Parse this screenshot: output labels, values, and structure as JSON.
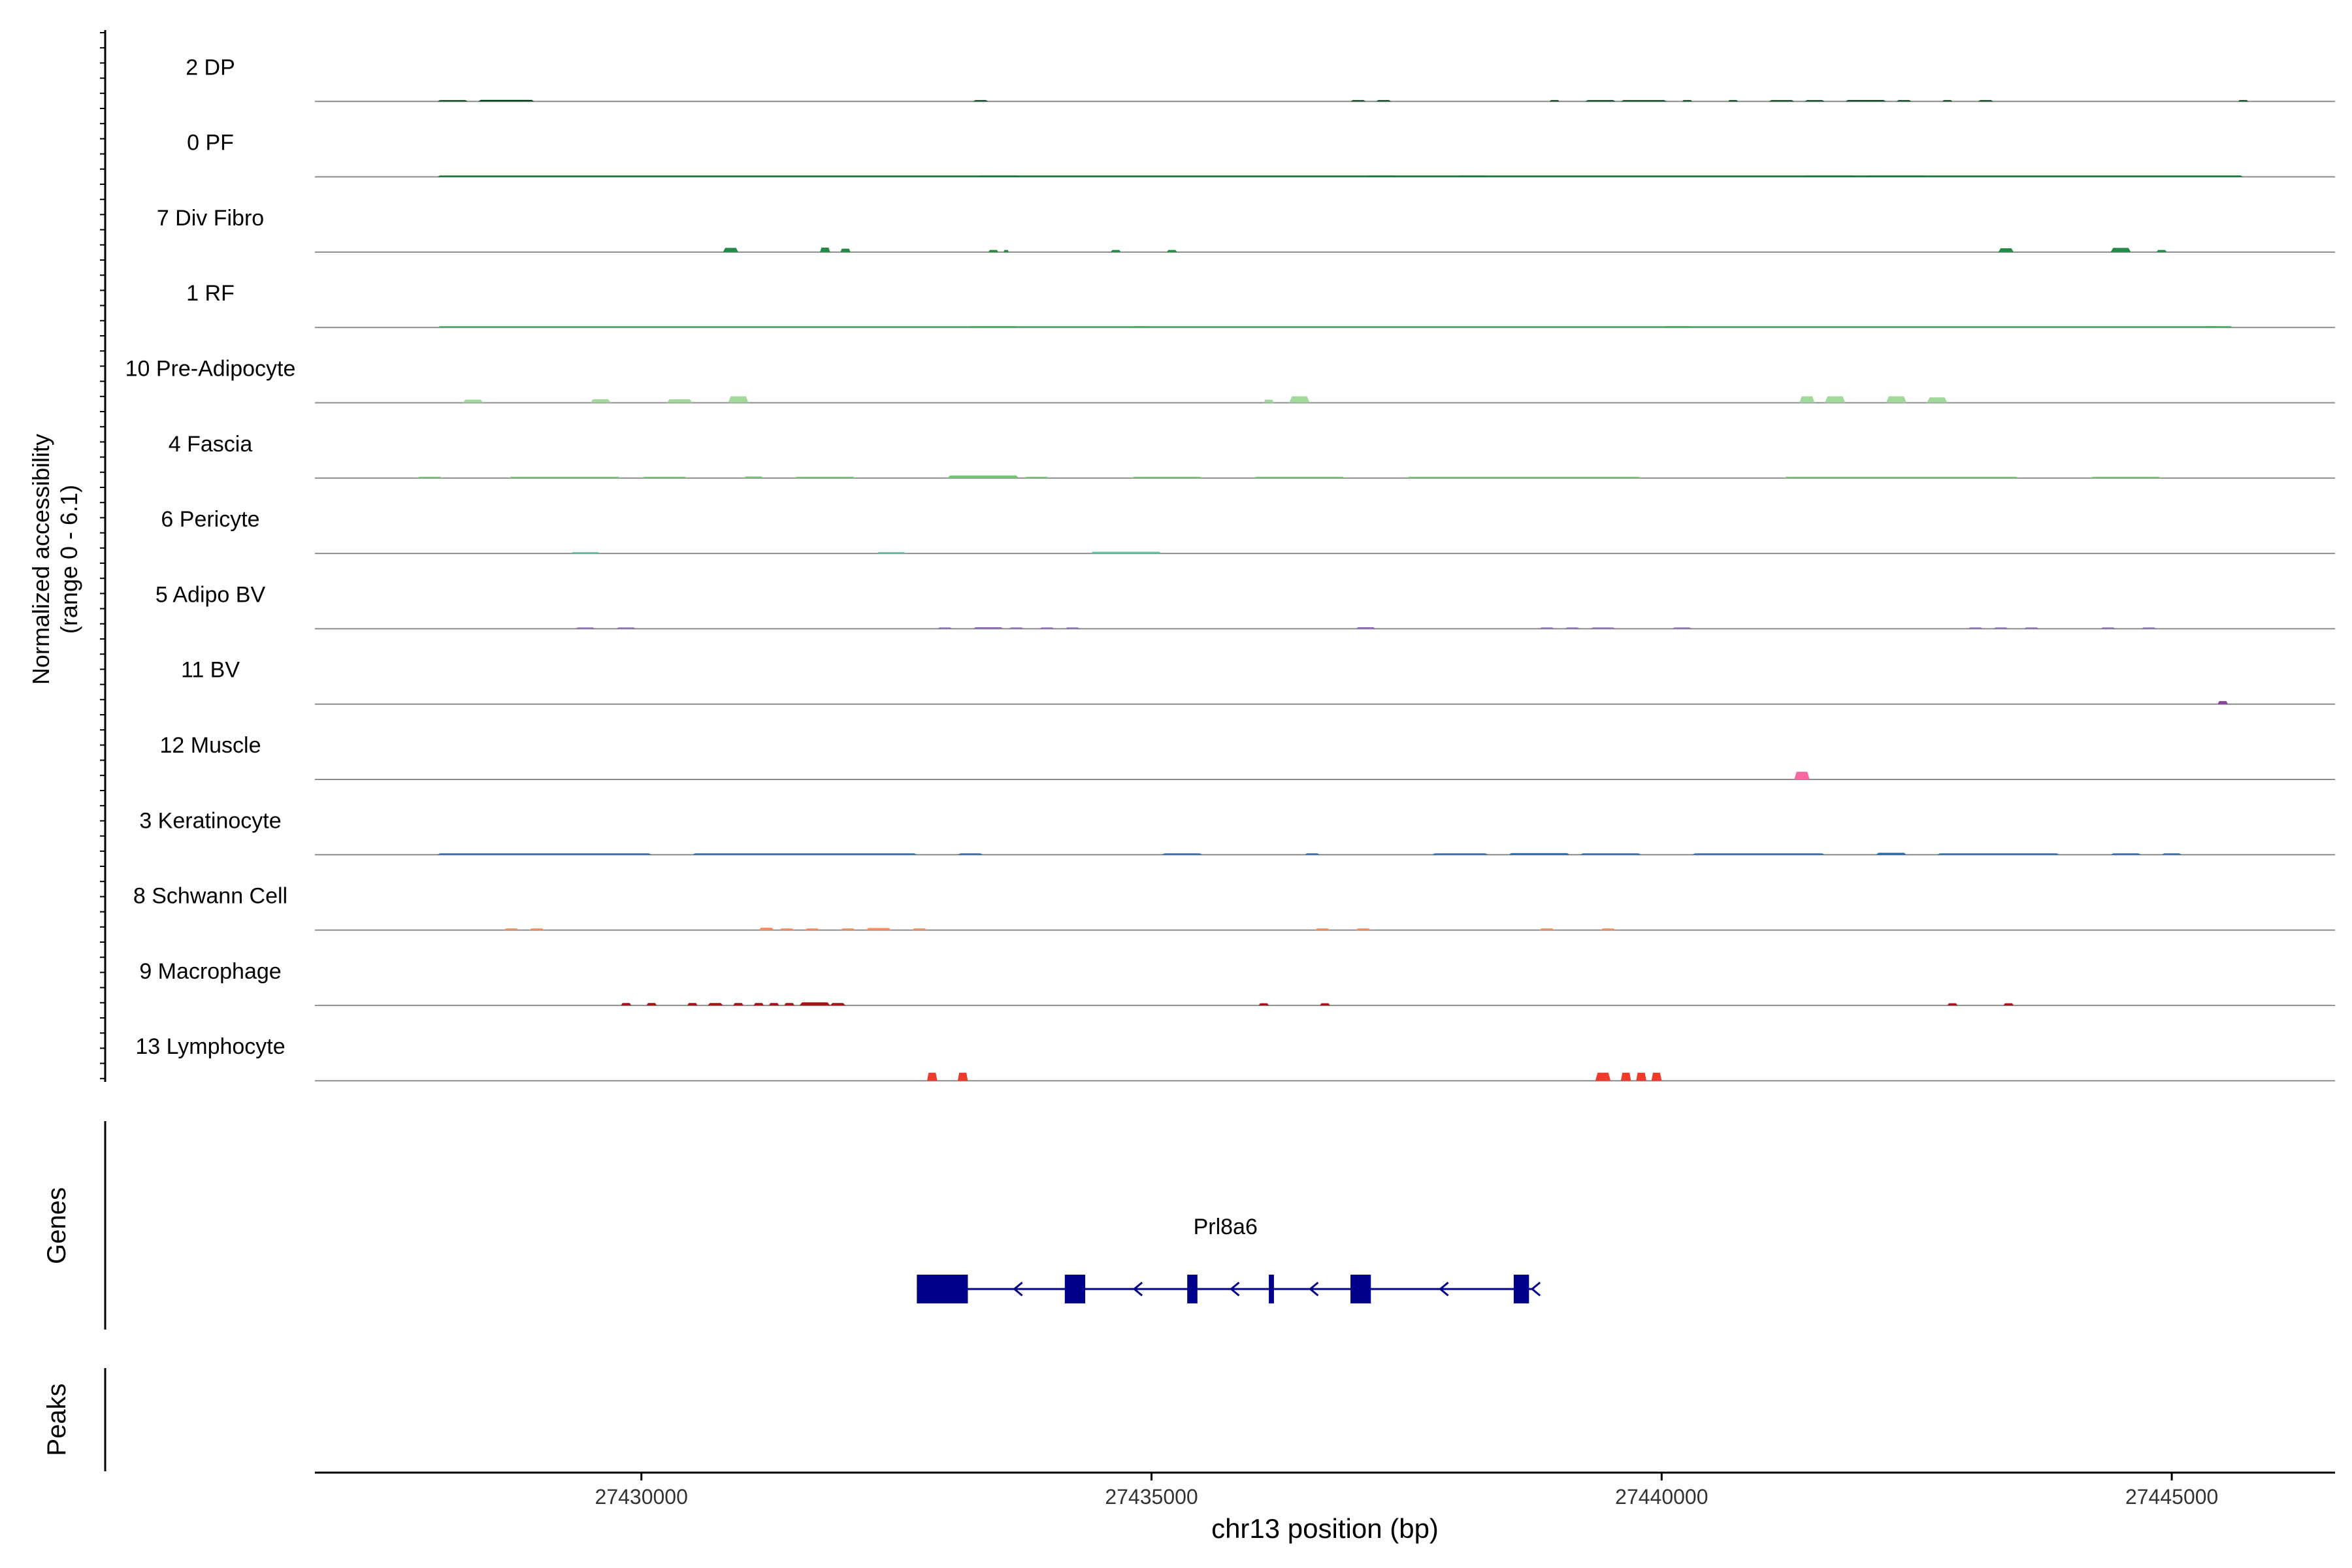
{
  "chart_data": {
    "type": "area",
    "title": "",
    "ylabel_line1": "Normalized accessibility",
    "ylabel_line2": "(range 0 - 6.1)",
    "y_range": [
      0,
      6.1
    ],
    "xlabel": "chr13 position (bp)",
    "xlim": [
      27426800,
      27446600
    ],
    "x_ticks": [
      27430000,
      27435000,
      27440000,
      27445000
    ],
    "x_tick_labels": [
      "27430000",
      "27435000",
      "27440000",
      "27445000"
    ],
    "tracks": [
      {
        "name": "2 DP",
        "color": "#00441b",
        "peaks": [
          {
            "start": 27428000,
            "end": 27428300,
            "height": 0.1
          },
          {
            "start": 27428400,
            "end": 27428950,
            "height": 0.15
          },
          {
            "start": 27433250,
            "end": 27433400,
            "height": 0.07
          },
          {
            "start": 27436950,
            "end": 27437100,
            "height": 0.06
          },
          {
            "start": 27437200,
            "end": 27437350,
            "height": 0.06
          },
          {
            "start": 27438900,
            "end": 27439000,
            "height": 0.07
          },
          {
            "start": 27439250,
            "end": 27439550,
            "height": 0.07
          },
          {
            "start": 27439600,
            "end": 27440050,
            "height": 0.09
          },
          {
            "start": 27440200,
            "end": 27440300,
            "height": 0.07
          },
          {
            "start": 27440650,
            "end": 27440750,
            "height": 0.06
          },
          {
            "start": 27441050,
            "end": 27441300,
            "height": 0.07
          },
          {
            "start": 27441400,
            "end": 27441600,
            "height": 0.07
          },
          {
            "start": 27441800,
            "end": 27442200,
            "height": 0.13
          },
          {
            "start": 27442300,
            "end": 27442450,
            "height": 0.08
          },
          {
            "start": 27442750,
            "end": 27442850,
            "height": 0.06
          },
          {
            "start": 27443100,
            "end": 27443250,
            "height": 0.06
          },
          {
            "start": 27445650,
            "end": 27445750,
            "height": 0.08
          }
        ]
      },
      {
        "name": "0 PF",
        "color": "#006d2c",
        "peaks": [
          {
            "start": 27428000,
            "end": 27445700,
            "height": 0.04
          },
          {
            "start": 27433300,
            "end": 27433700,
            "height": 0.06
          },
          {
            "start": 27437100,
            "end": 27437400,
            "height": 0.07
          },
          {
            "start": 27438000,
            "end": 27438300,
            "height": 0.06
          },
          {
            "start": 27441400,
            "end": 27441900,
            "height": 0.07
          },
          {
            "start": 27442000,
            "end": 27442600,
            "height": 0.07
          }
        ]
      },
      {
        "name": "7 Div Fibro",
        "color": "#238b45",
        "peaks": [
          {
            "start": 27430800,
            "end": 27430950,
            "height": 0.4
          },
          {
            "start": 27431750,
            "end": 27431850,
            "height": 0.42
          },
          {
            "start": 27431950,
            "end": 27432050,
            "height": 0.32
          },
          {
            "start": 27433400,
            "end": 27433500,
            "height": 0.2
          },
          {
            "start": 27433550,
            "end": 27433600,
            "height": 0.2
          },
          {
            "start": 27434600,
            "end": 27434700,
            "height": 0.2
          },
          {
            "start": 27435150,
            "end": 27435250,
            "height": 0.2
          },
          {
            "start": 27443300,
            "end": 27443450,
            "height": 0.36
          },
          {
            "start": 27444400,
            "end": 27444600,
            "height": 0.4
          },
          {
            "start": 27444850,
            "end": 27444950,
            "height": 0.2
          }
        ]
      },
      {
        "name": "1 RF",
        "color": "#41ab5d",
        "peaks": [
          {
            "start": 27428000,
            "end": 27445600,
            "height": 0.04
          },
          {
            "start": 27433200,
            "end": 27433700,
            "height": 0.08
          },
          {
            "start": 27434800,
            "end": 27435000,
            "height": 0.06
          },
          {
            "start": 27440000,
            "end": 27440300,
            "height": 0.06
          },
          {
            "start": 27445300,
            "end": 27445500,
            "height": 0.05
          }
        ]
      },
      {
        "name": "10 Pre-Adipocyte",
        "color": "#a1d99b",
        "peaks": [
          {
            "start": 27428250,
            "end": 27428450,
            "height": 0.3
          },
          {
            "start": 27429500,
            "end": 27429700,
            "height": 0.33
          },
          {
            "start": 27430250,
            "end": 27430500,
            "height": 0.33
          },
          {
            "start": 27430850,
            "end": 27431050,
            "height": 0.6
          },
          {
            "start": 27436100,
            "end": 27436200,
            "height": 0.3
          },
          {
            "start": 27436350,
            "end": 27436550,
            "height": 0.6
          },
          {
            "start": 27441350,
            "end": 27441500,
            "height": 0.6
          },
          {
            "start": 27441600,
            "end": 27441800,
            "height": 0.6
          },
          {
            "start": 27442200,
            "end": 27442400,
            "height": 0.6
          },
          {
            "start": 27442600,
            "end": 27442800,
            "height": 0.5
          }
        ]
      },
      {
        "name": "4 Fascia",
        "color": "#74c476",
        "peaks": [
          {
            "start": 27427800,
            "end": 27428050,
            "height": 0.05
          },
          {
            "start": 27428700,
            "end": 27429800,
            "height": 0.1
          },
          {
            "start": 27430000,
            "end": 27430450,
            "height": 0.05
          },
          {
            "start": 27431000,
            "end": 27431200,
            "height": 0.15
          },
          {
            "start": 27431500,
            "end": 27432100,
            "height": 0.1
          },
          {
            "start": 27433000,
            "end": 27433700,
            "height": 0.25
          },
          {
            "start": 27433750,
            "end": 27434000,
            "height": 0.08
          },
          {
            "start": 27434800,
            "end": 27435500,
            "height": 0.05
          },
          {
            "start": 27436000,
            "end": 27436900,
            "height": 0.05
          },
          {
            "start": 27437500,
            "end": 27439800,
            "height": 0.08
          },
          {
            "start": 27441200,
            "end": 27443500,
            "height": 0.08
          },
          {
            "start": 27444200,
            "end": 27444900,
            "height": 0.08
          }
        ]
      },
      {
        "name": "6 Pericyte",
        "color": "#66c2a4",
        "peaks": [
          {
            "start": 27429300,
            "end": 27429600,
            "height": 0.12
          },
          {
            "start": 27432300,
            "end": 27432600,
            "height": 0.12
          },
          {
            "start": 27434400,
            "end": 27435100,
            "height": 0.16
          }
        ]
      },
      {
        "name": "5 Adipo BV",
        "color": "#8c6bb1",
        "peaks": [
          {
            "start": 27429350,
            "end": 27429550,
            "height": 0.12
          },
          {
            "start": 27429750,
            "end": 27429950,
            "height": 0.12
          },
          {
            "start": 27432900,
            "end": 27433050,
            "height": 0.08
          },
          {
            "start": 27433250,
            "end": 27433550,
            "height": 0.15
          },
          {
            "start": 27433600,
            "end": 27433750,
            "height": 0.08
          },
          {
            "start": 27433900,
            "end": 27434050,
            "height": 0.08
          },
          {
            "start": 27434150,
            "end": 27434300,
            "height": 0.08
          },
          {
            "start": 27437000,
            "end": 27437200,
            "height": 0.15
          },
          {
            "start": 27438800,
            "end": 27438950,
            "height": 0.08
          },
          {
            "start": 27439050,
            "end": 27439200,
            "height": 0.08
          },
          {
            "start": 27439300,
            "end": 27439550,
            "height": 0.12
          },
          {
            "start": 27440100,
            "end": 27440300,
            "height": 0.12
          },
          {
            "start": 27443000,
            "end": 27443150,
            "height": 0.08
          },
          {
            "start": 27443250,
            "end": 27443400,
            "height": 0.08
          },
          {
            "start": 27443550,
            "end": 27443700,
            "height": 0.08
          },
          {
            "start": 27444300,
            "end": 27444450,
            "height": 0.1
          },
          {
            "start": 27444700,
            "end": 27444850,
            "height": 0.12
          }
        ]
      },
      {
        "name": "11 BV",
        "color": "#88419d",
        "peaks": [
          {
            "start": 27445450,
            "end": 27445550,
            "height": 0.28
          }
        ]
      },
      {
        "name": "12 Muscle",
        "color": "#f768a1",
        "peaks": [
          {
            "start": 27441300,
            "end": 27441450,
            "height": 0.72
          }
        ]
      },
      {
        "name": "3 Keratinocyte",
        "color": "#2166ac",
        "peaks": [
          {
            "start": 27428000,
            "end": 27430100,
            "height": 0.06
          },
          {
            "start": 27430500,
            "end": 27432700,
            "height": 0.06
          },
          {
            "start": 27433100,
            "end": 27433350,
            "height": 0.1
          },
          {
            "start": 27435100,
            "end": 27435500,
            "height": 0.06
          },
          {
            "start": 27436500,
            "end": 27436650,
            "height": 0.06
          },
          {
            "start": 27437750,
            "end": 27438300,
            "height": 0.12
          },
          {
            "start": 27438500,
            "end": 27439100,
            "height": 0.15
          },
          {
            "start": 27439200,
            "end": 27439800,
            "height": 0.1
          },
          {
            "start": 27440300,
            "end": 27441600,
            "height": 0.06
          },
          {
            "start": 27442100,
            "end": 27442400,
            "height": 0.18
          },
          {
            "start": 27442700,
            "end": 27443900,
            "height": 0.06
          },
          {
            "start": 27444400,
            "end": 27444700,
            "height": 0.08
          },
          {
            "start": 27444900,
            "end": 27445100,
            "height": 0.04
          }
        ]
      },
      {
        "name": "8 Schwann Cell",
        "color": "#fc8d59",
        "peaks": [
          {
            "start": 27428650,
            "end": 27428800,
            "height": 0.15
          },
          {
            "start": 27428900,
            "end": 27429050,
            "height": 0.15
          },
          {
            "start": 27431150,
            "end": 27431300,
            "height": 0.22
          },
          {
            "start": 27431350,
            "end": 27431500,
            "height": 0.15
          },
          {
            "start": 27431600,
            "end": 27431750,
            "height": 0.15
          },
          {
            "start": 27431950,
            "end": 27432100,
            "height": 0.15
          },
          {
            "start": 27432200,
            "end": 27432450,
            "height": 0.2
          },
          {
            "start": 27432650,
            "end": 27432800,
            "height": 0.15
          },
          {
            "start": 27436600,
            "end": 27436750,
            "height": 0.15
          },
          {
            "start": 27437000,
            "end": 27437150,
            "height": 0.15
          },
          {
            "start": 27438800,
            "end": 27438950,
            "height": 0.15
          },
          {
            "start": 27439400,
            "end": 27439550,
            "height": 0.15
          }
        ]
      },
      {
        "name": "9 Macrophage",
        "color": "#a50f15",
        "peaks": [
          {
            "start": 27429800,
            "end": 27429900,
            "height": 0.22
          },
          {
            "start": 27430050,
            "end": 27430150,
            "height": 0.22
          },
          {
            "start": 27430450,
            "end": 27430550,
            "height": 0.22
          },
          {
            "start": 27430650,
            "end": 27430800,
            "height": 0.22
          },
          {
            "start": 27430900,
            "end": 27431000,
            "height": 0.22
          },
          {
            "start": 27431100,
            "end": 27431200,
            "height": 0.22
          },
          {
            "start": 27431250,
            "end": 27431350,
            "height": 0.22
          },
          {
            "start": 27431400,
            "end": 27431500,
            "height": 0.22
          },
          {
            "start": 27431550,
            "end": 27431850,
            "height": 0.28
          },
          {
            "start": 27431850,
            "end": 27432000,
            "height": 0.22
          },
          {
            "start": 27436050,
            "end": 27436150,
            "height": 0.2
          },
          {
            "start": 27436650,
            "end": 27436750,
            "height": 0.2
          },
          {
            "start": 27442800,
            "end": 27442900,
            "height": 0.2
          },
          {
            "start": 27443350,
            "end": 27443450,
            "height": 0.2
          }
        ]
      },
      {
        "name": "13 Lymphocyte",
        "color": "#ef3b2c",
        "peaks": [
          {
            "start": 27432800,
            "end": 27432900,
            "height": 0.75
          },
          {
            "start": 27433100,
            "end": 27433200,
            "height": 0.75
          },
          {
            "start": 27439350,
            "end": 27439500,
            "height": 0.75
          },
          {
            "start": 27439600,
            "end": 27439700,
            "height": 0.75
          },
          {
            "start": 27439750,
            "end": 27439850,
            "height": 0.75
          },
          {
            "start": 27439900,
            "end": 27440000,
            "height": 0.75
          }
        ]
      }
    ],
    "gene": {
      "name": "Prl8a6",
      "strand": "-",
      "start": 27432700,
      "end": 27438750,
      "exons": [
        {
          "start": 27432700,
          "end": 27433200
        },
        {
          "start": 27434150,
          "end": 27434350
        },
        {
          "start": 27435350,
          "end": 27435450
        },
        {
          "start": 27436150,
          "end": 27436200
        },
        {
          "start": 27436950,
          "end": 27437150
        },
        {
          "start": 27438550,
          "end": 27438700
        }
      ]
    },
    "genes_label": "Genes",
    "peaks_label": "Peaks"
  }
}
